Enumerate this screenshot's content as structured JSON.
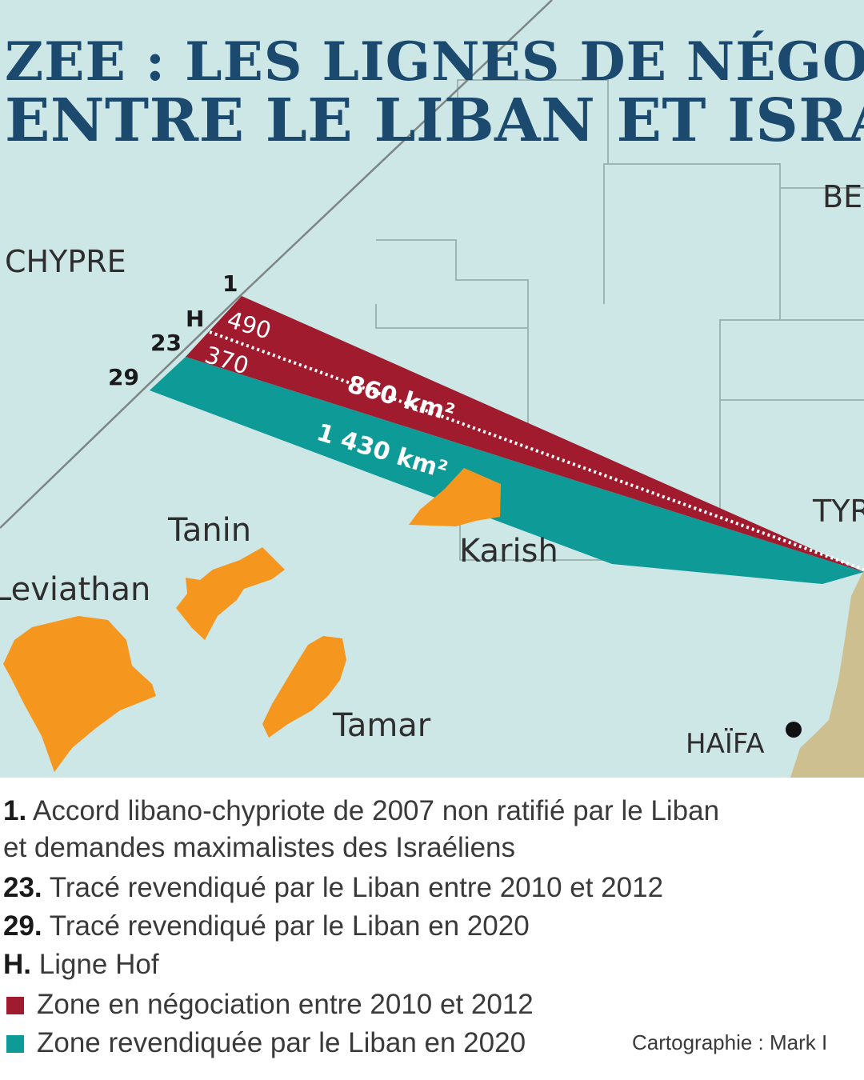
{
  "title": {
    "line1": "ZEE : LES LIGNES DE NÉGOCIATIO",
    "line2": "ENTRE LE LIBAN ET ISRAËL"
  },
  "colors": {
    "sea": "#cde7e6",
    "zone_2010_2012": "#a11b2e",
    "zone_2020": "#0e9b98",
    "gas_fields": "#f5961f",
    "land": "#cdbf8f",
    "border": "#8a8a8a",
    "title": "#1b4a6e"
  },
  "map": {
    "places": {
      "chypre": "CHYPRE",
      "beyrouth": "BE",
      "tyr": "TYR",
      "haifa": "HAÏFA"
    },
    "line_labels": {
      "line1": "1",
      "lineH": "H",
      "line23": "23",
      "line29": "29"
    },
    "fields": {
      "tanin": "Tanin",
      "leviathan": "Leviathan",
      "karish": "Karish",
      "tamar": "Tamar"
    },
    "areas": {
      "red_upper": "490",
      "red_lower": "370",
      "red_total": "860 km²",
      "teal_total": "1 430 km²"
    }
  },
  "legend": {
    "item1": {
      "key": "1.",
      "text": " Accord libano-chypriote de 2007 non ratifié par le Liban"
    },
    "item1b": "et demandes maximalistes des Israéliens",
    "item23": {
      "key": "23.",
      "text": " Tracé revendiqué par le Liban entre 2010 et 2012"
    },
    "item29": {
      "key": "29.",
      "text": " Tracé revendiqué par le Liban en 2020"
    },
    "itemH": {
      "key": "H.",
      "text": " Ligne Hof"
    },
    "zone_red": "Zone en négociation entre 2010 et 2012",
    "zone_teal": "Zone revendiquée par le Liban en 2020",
    "credit": "Cartographie : Mark I"
  }
}
